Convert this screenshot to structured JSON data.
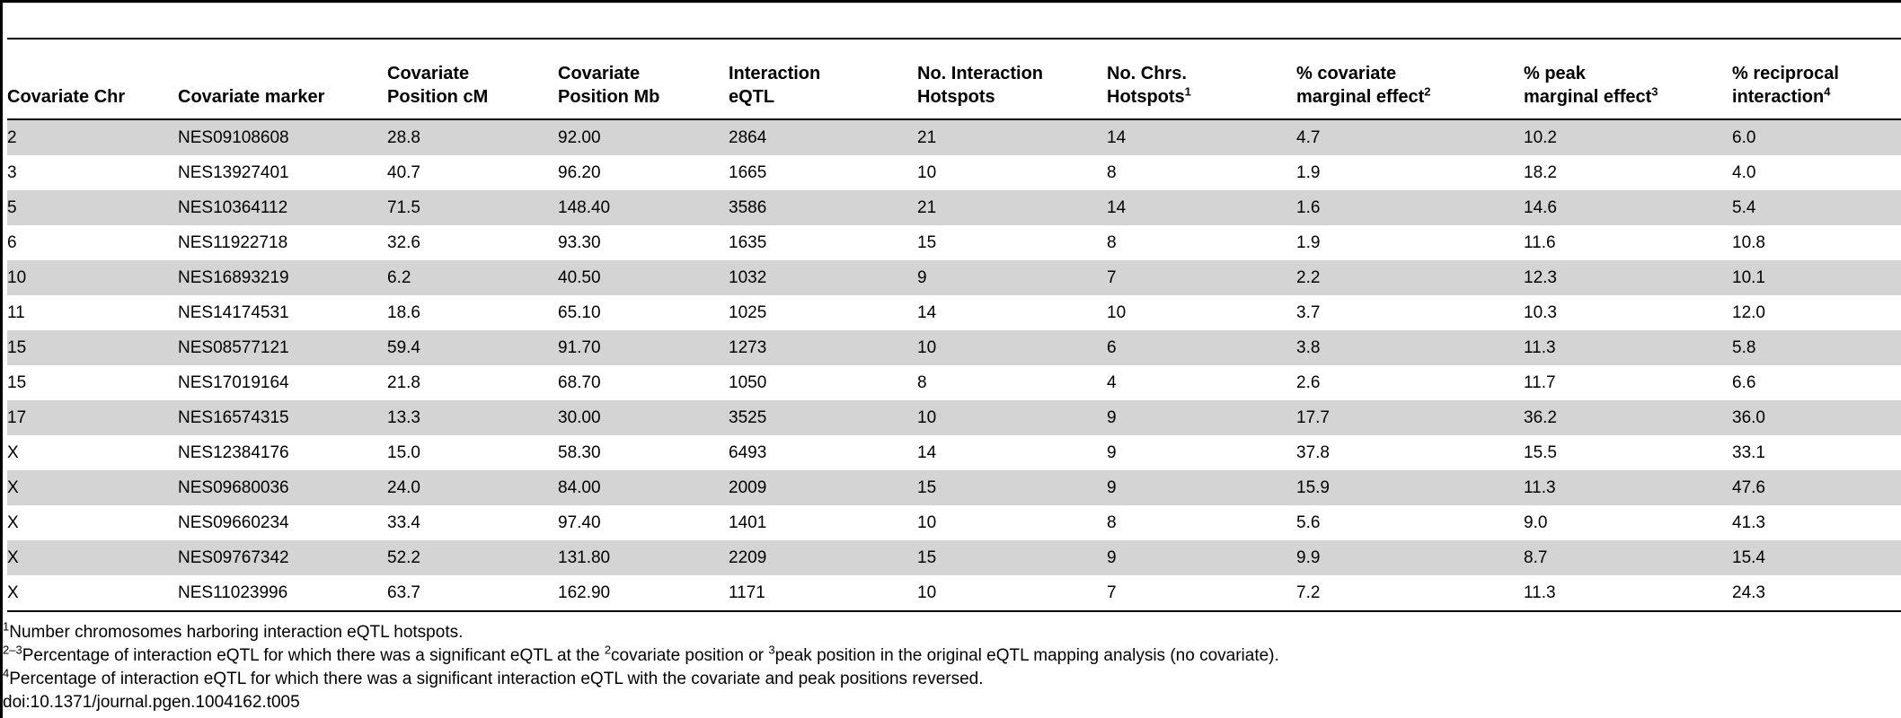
{
  "table": {
    "headers": [
      {
        "line1": "",
        "line2": "Covariate Chr",
        "sup": ""
      },
      {
        "line1": "",
        "line2": "Covariate marker",
        "sup": ""
      },
      {
        "line1": "Covariate",
        "line2": "Position cM",
        "sup": ""
      },
      {
        "line1": "Covariate",
        "line2": "Position Mb",
        "sup": ""
      },
      {
        "line1": "Interaction",
        "line2": "eQTL",
        "sup": ""
      },
      {
        "line1": "No. Interaction",
        "line2": "Hotspots",
        "sup": ""
      },
      {
        "line1": "No. Chrs.",
        "line2": "Hotspots",
        "sup": "1"
      },
      {
        "line1": "% covariate",
        "line2": "marginal effect",
        "sup": "2"
      },
      {
        "line1": "% peak",
        "line2": "marginal effect",
        "sup": "3"
      },
      {
        "line1": "% reciprocal",
        "line2": "interaction",
        "sup": "4"
      }
    ],
    "rows": [
      [
        "2",
        "NES09108608",
        "28.8",
        "92.00",
        "2864",
        "21",
        "14",
        "4.7",
        "10.2",
        "6.0"
      ],
      [
        "3",
        "NES13927401",
        "40.7",
        "96.20",
        "1665",
        "10",
        "8",
        "1.9",
        "18.2",
        "4.0"
      ],
      [
        "5",
        "NES10364112",
        "71.5",
        "148.40",
        "3586",
        "21",
        "14",
        "1.6",
        "14.6",
        "5.4"
      ],
      [
        "6",
        "NES11922718",
        "32.6",
        "93.30",
        "1635",
        "15",
        "8",
        "1.9",
        "11.6",
        "10.8"
      ],
      [
        "10",
        "NES16893219",
        "6.2",
        "40.50",
        "1032",
        "9",
        "7",
        "2.2",
        "12.3",
        "10.1"
      ],
      [
        "11",
        "NES14174531",
        "18.6",
        "65.10",
        "1025",
        "14",
        "10",
        "3.7",
        "10.3",
        "12.0"
      ],
      [
        "15",
        "NES08577121",
        "59.4",
        "91.70",
        "1273",
        "10",
        "6",
        "3.8",
        "11.3",
        "5.8"
      ],
      [
        "15",
        "NES17019164",
        "21.8",
        "68.70",
        "1050",
        "8",
        "4",
        "2.6",
        "11.7",
        "6.6"
      ],
      [
        "17",
        "NES16574315",
        "13.3",
        "30.00",
        "3525",
        "10",
        "9",
        "17.7",
        "36.2",
        "36.0"
      ],
      [
        "X",
        "NES12384176",
        "15.0",
        "58.30",
        "6493",
        "14",
        "9",
        "37.8",
        "15.5",
        "33.1"
      ],
      [
        "X",
        "NES09680036",
        "24.0",
        "84.00",
        "2009",
        "15",
        "9",
        "15.9",
        "11.3",
        "47.6"
      ],
      [
        "X",
        "NES09660234",
        "33.4",
        "97.40",
        "1401",
        "10",
        "8",
        "5.6",
        "9.0",
        "41.3"
      ],
      [
        "X",
        "NES09767342",
        "52.2",
        "131.80",
        "2209",
        "15",
        "9",
        "9.9",
        "8.7",
        "15.4"
      ],
      [
        "X",
        "NES11023996",
        "63.7",
        "162.90",
        "1171",
        "10",
        "7",
        "7.2",
        "11.3",
        "24.3"
      ]
    ]
  },
  "footnotes": {
    "fn1": {
      "sup": "1",
      "text": "Number chromosomes harboring interaction eQTL hotspots."
    },
    "fn2": {
      "sup": "2–3",
      "text_a": "Percentage of interaction eQTL for which there was a significant eQTL at the ",
      "sup_a": "2",
      "text_b": "covariate position or ",
      "sup_b": "3",
      "text_c": "peak position in the original eQTL mapping analysis (no covariate)."
    },
    "fn3": {
      "sup": "4",
      "text": "Percentage of interaction eQTL for which there was a significant interaction eQTL with the covariate and peak positions reversed."
    },
    "doi": "doi:10.1371/journal.pgen.1004162.t005"
  }
}
